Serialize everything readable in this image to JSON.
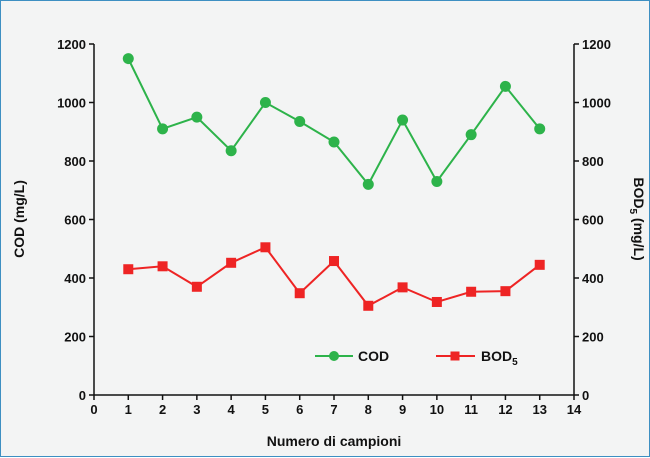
{
  "chart_data": {
    "type": "line",
    "xlabel": "Numero di campioni",
    "ylabel_left": "COD (mg/L)",
    "ylabel_right_main": "BOD",
    "ylabel_right_sub": "5",
    "ylabel_right_suffix": " (mg/L)",
    "xlim": [
      0,
      14
    ],
    "ylim": [
      0,
      1200
    ],
    "x_ticks": [
      0,
      1,
      2,
      3,
      4,
      5,
      6,
      7,
      8,
      9,
      10,
      11,
      12,
      13,
      14
    ],
    "y_ticks": [
      0,
      200,
      400,
      600,
      800,
      1000,
      1200
    ],
    "grid": false,
    "legend_position": "bottom-right",
    "x": [
      1,
      2,
      3,
      4,
      5,
      6,
      7,
      8,
      9,
      10,
      11,
      12,
      13
    ],
    "series": [
      {
        "name": "COD",
        "label_main": "COD",
        "label_sub": "",
        "axis": "left",
        "color": "#2db34a",
        "marker": "circle",
        "values": [
          1150,
          910,
          950,
          835,
          1000,
          935,
          865,
          720,
          940,
          730,
          890,
          1055,
          910
        ]
      },
      {
        "name": "BOD5",
        "label_main": "BOD",
        "label_sub": "5",
        "axis": "right",
        "color": "#ee2424",
        "marker": "square",
        "values": [
          430,
          440,
          370,
          452,
          505,
          348,
          458,
          305,
          368,
          318,
          353,
          355,
          445
        ]
      }
    ]
  }
}
